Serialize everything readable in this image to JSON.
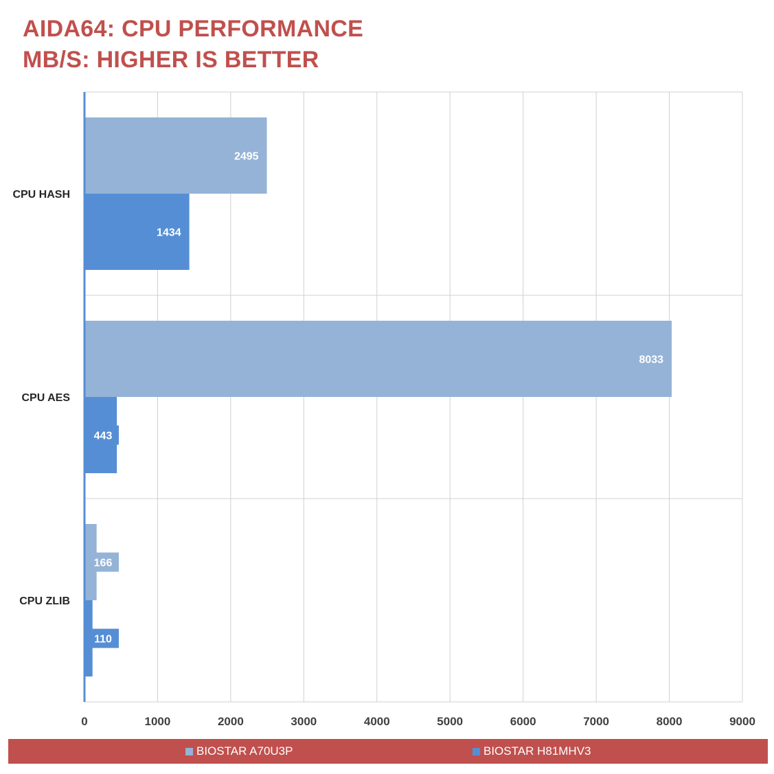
{
  "title_line1": "AIDA64: CPU PERFORMANCE",
  "title_line2": "MB/S: HIGHER IS BETTER",
  "chart_data": {
    "type": "bar",
    "orientation": "horizontal",
    "categories": [
      "CPU HASH",
      "CPU AES",
      "CPU ZLIB"
    ],
    "series": [
      {
        "name": "BIOSTAR A70U3P",
        "values": [
          2495,
          8033,
          166
        ],
        "color": "#95b3d7"
      },
      {
        "name": "BIOSTAR H81MHV3",
        "values": [
          1434,
          443,
          110
        ],
        "color": "#558ed5"
      }
    ],
    "xlim": [
      0,
      9000
    ],
    "x_ticks": [
      0,
      1000,
      2000,
      3000,
      4000,
      5000,
      6000,
      7000,
      8000,
      9000
    ],
    "grid": true,
    "legend_position": "bottom",
    "data_label_color": "#ffffff",
    "axis_color": "#558ed5"
  },
  "legend_background": "#c0504d"
}
